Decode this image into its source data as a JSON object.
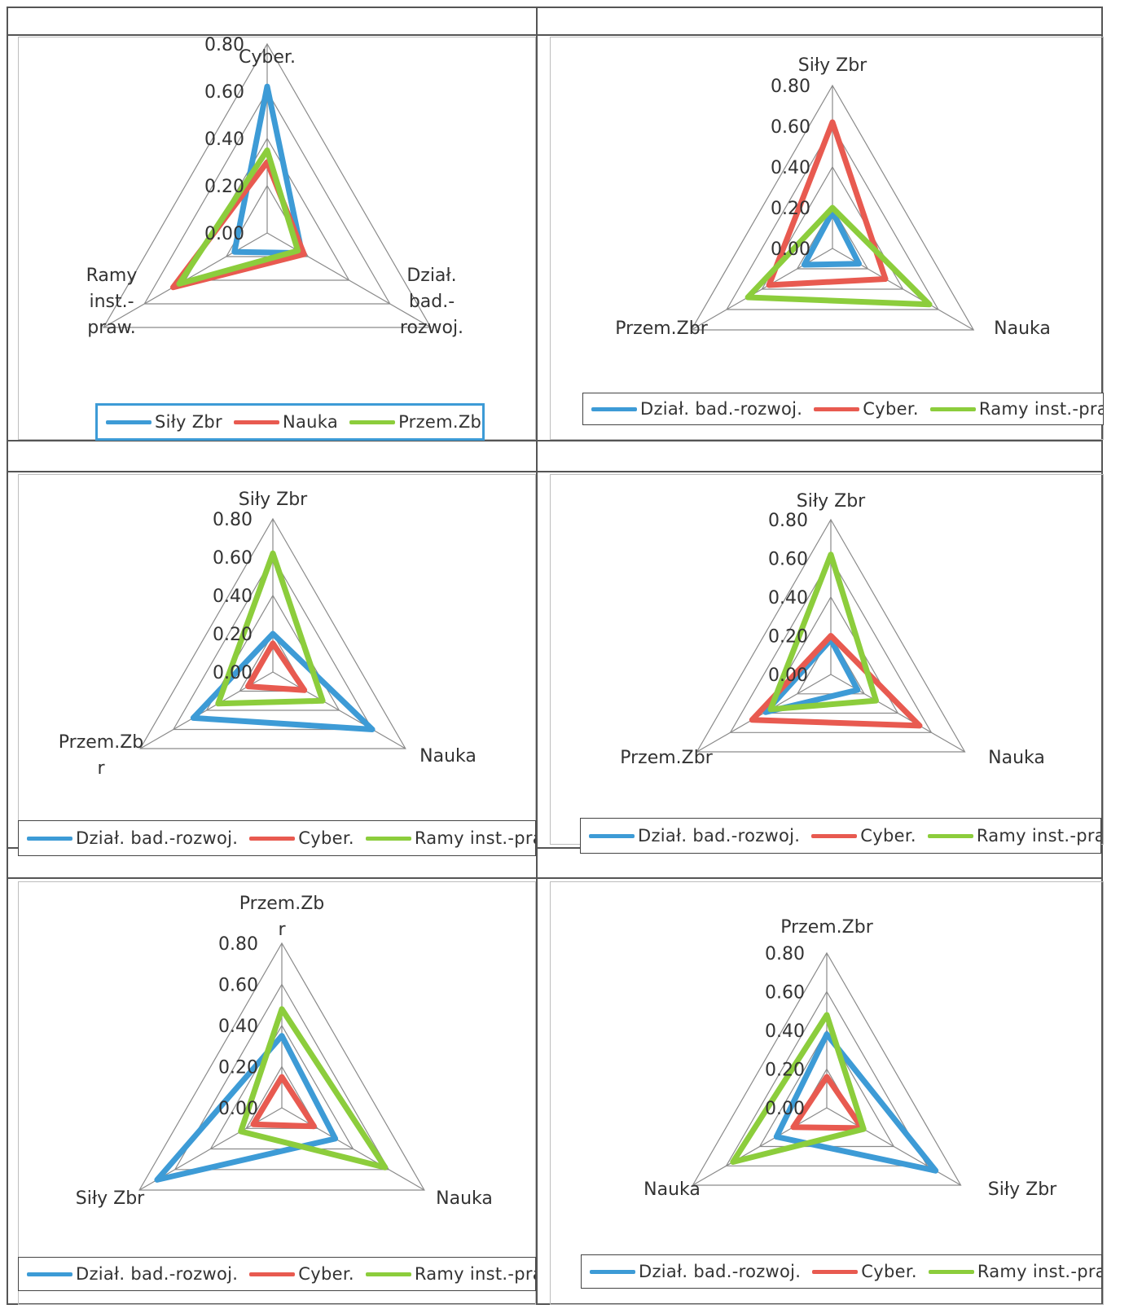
{
  "colors": {
    "blue": "#3d9bd6",
    "red": "#e85a50",
    "green": "#8ccd3c"
  },
  "chart_data": [
    {
      "type": "radar",
      "axis_labels": [
        [
          "Cyber."
        ],
        [
          "Dział.",
          "bad.-",
          "rozwoj."
        ],
        [
          "Ramy",
          "inst.-",
          "praw."
        ]
      ],
      "tick_labels": [
        "0.80",
        "0.60",
        "0.40",
        "0.20",
        "0.00"
      ],
      "rmax": 0.8,
      "series": [
        {
          "name": "Siły Zbr",
          "color": "blue",
          "values": [
            0.62,
            0.17,
            0.16
          ]
        },
        {
          "name": "Nauka",
          "color": "red",
          "values": [
            0.3,
            0.18,
            0.46
          ]
        },
        {
          "name": "Przem.Zbr",
          "color": "green",
          "values": [
            0.35,
            0.15,
            0.43
          ]
        }
      ]
    },
    {
      "type": "radar",
      "axis_labels": [
        [
          "Siły Zbr"
        ],
        [
          "Nauka"
        ],
        [
          "Przem.Zbr"
        ]
      ],
      "tick_labels": [
        "0.80",
        "0.60",
        "0.40",
        "0.20",
        "0.00"
      ],
      "rmax": 0.8,
      "series": [
        {
          "name": "Dział. bad.-rozwoj.",
          "color": "blue",
          "values": [
            0.18,
            0.15,
            0.16
          ]
        },
        {
          "name": "Cyber.",
          "color": "red",
          "values": [
            0.62,
            0.3,
            0.36
          ]
        },
        {
          "name": "Ramy inst.-praw",
          "color": "green",
          "values": [
            0.2,
            0.55,
            0.48
          ]
        }
      ]
    },
    {
      "type": "radar",
      "axis_labels": [
        [
          "Siły Zbr"
        ],
        [
          "Nauka"
        ],
        [
          "Przem.Zb",
          "r"
        ]
      ],
      "tick_labels": [
        "0.80",
        "0.60",
        "0.40",
        "0.20",
        "0.00"
      ],
      "rmax": 0.8,
      "series": [
        {
          "name": "Dział. bad.-rozwoj.",
          "color": "blue",
          "values": [
            0.2,
            0.6,
            0.48
          ]
        },
        {
          "name": "Cyber.",
          "color": "red",
          "values": [
            0.15,
            0.19,
            0.15
          ]
        },
        {
          "name": "Ramy inst.-praw.",
          "color": "green",
          "values": [
            0.62,
            0.3,
            0.33
          ]
        }
      ]
    },
    {
      "type": "radar",
      "axis_labels": [
        [
          "Siły Zbr"
        ],
        [
          "Nauka"
        ],
        [
          "Przem.Zbr"
        ]
      ],
      "tick_labels": [
        "0.80",
        "0.60",
        "0.40",
        "0.20",
        "0.00"
      ],
      "rmax": 0.8,
      "series": [
        {
          "name": "Dział. bad.-rozwoj.",
          "color": "blue",
          "values": [
            0.18,
            0.16,
            0.39
          ]
        },
        {
          "name": "Cyber.",
          "color": "red",
          "values": [
            0.2,
            0.53,
            0.47
          ]
        },
        {
          "name": "Ramy inst.-praw.",
          "color": "green",
          "values": [
            0.62,
            0.27,
            0.36
          ]
        }
      ]
    },
    {
      "type": "radar",
      "axis_labels": [
        [
          "Przem.Zb",
          "r"
        ],
        [
          "Nauka"
        ],
        [
          "Siły Zbr"
        ]
      ],
      "tick_labels": [
        "0.80",
        "0.60",
        "0.40",
        "0.20",
        "0.00"
      ],
      "rmax": 0.8,
      "series": [
        {
          "name": "Dział. bad.-rozwoj.",
          "color": "blue",
          "values": [
            0.35,
            0.3,
            0.7
          ]
        },
        {
          "name": "Cyber.",
          "color": "red",
          "values": [
            0.15,
            0.18,
            0.16
          ]
        },
        {
          "name": "Ramy inst.-praw",
          "color": "green",
          "values": [
            0.48,
            0.58,
            0.23
          ]
        }
      ]
    },
    {
      "type": "radar",
      "axis_labels": [
        [
          "Przem.Zbr"
        ],
        [
          "Siły Zbr"
        ],
        [
          "Nauka"
        ]
      ],
      "tick_labels": [
        "0.80",
        "0.60",
        "0.40",
        "0.20",
        "0.00"
      ],
      "rmax": 0.8,
      "series": [
        {
          "name": "Dział. bad.-rozwoj.",
          "color": "blue",
          "values": [
            0.38,
            0.65,
            0.3
          ]
        },
        {
          "name": "Cyber.",
          "color": "red",
          "values": [
            0.16,
            0.21,
            0.2
          ]
        },
        {
          "name": "Ramy inst.-praw.",
          "color": "green",
          "values": [
            0.48,
            0.22,
            0.56
          ]
        }
      ]
    }
  ]
}
